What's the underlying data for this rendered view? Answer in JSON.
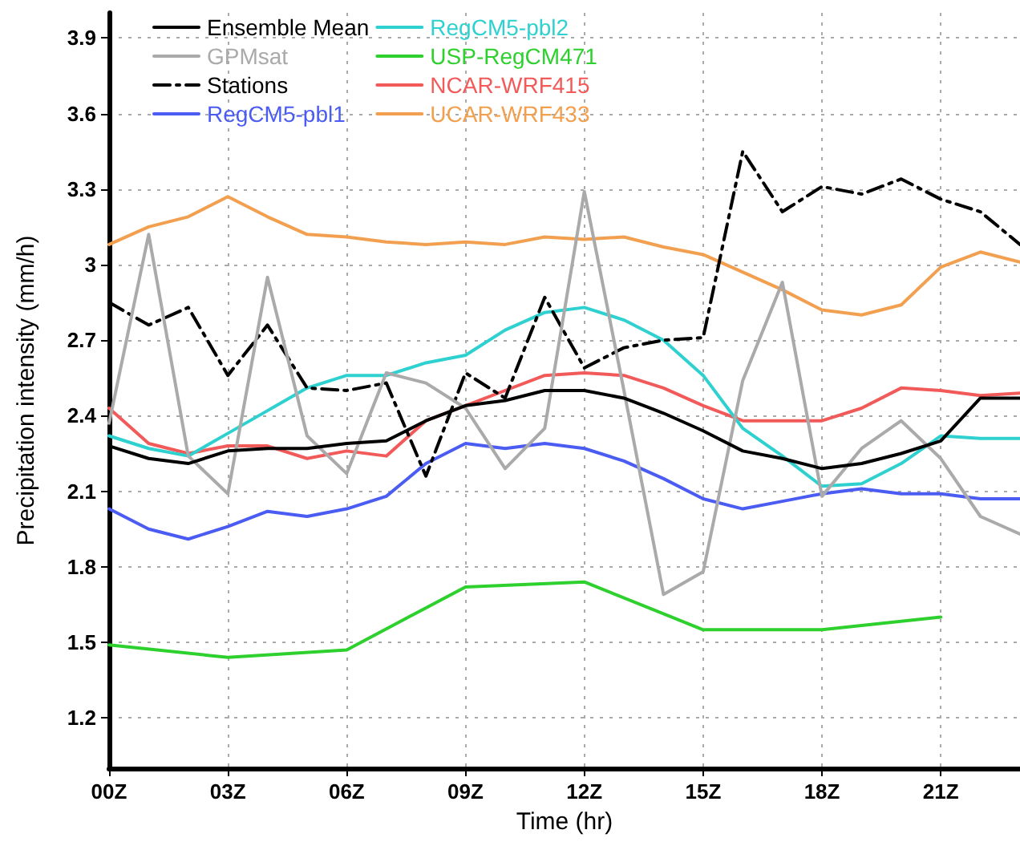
{
  "chart_data": {
    "type": "line",
    "xlabel": "Time (hr)",
    "ylabel": "Precipitation intensity (mm/h)",
    "x": [
      0,
      1,
      2,
      3,
      4,
      5,
      6,
      7,
      8,
      9,
      10,
      11,
      12,
      13,
      14,
      15,
      16,
      17,
      18,
      19,
      20,
      21,
      22,
      23
    ],
    "xlim": [
      0,
      23
    ],
    "ylim": [
      1.0,
      4.0
    ],
    "xticks": [
      {
        "value": 0,
        "label": "00Z"
      },
      {
        "value": 3,
        "label": "03Z"
      },
      {
        "value": 6,
        "label": "06Z"
      },
      {
        "value": 9,
        "label": "09Z"
      },
      {
        "value": 12,
        "label": "12Z"
      },
      {
        "value": 15,
        "label": "15Z"
      },
      {
        "value": 18,
        "label": "18Z"
      },
      {
        "value": 21,
        "label": "21Z"
      }
    ],
    "yticks": [
      1.2,
      1.5,
      1.8,
      2.1,
      2.4,
      2.7,
      3,
      3.3,
      3.6,
      3.9
    ],
    "grid": true,
    "legend": "top left",
    "marker": "none",
    "series": [
      {
        "name": "Ensemble Mean",
        "color": "#000000",
        "values": [
          2.28,
          2.23,
          2.21,
          2.26,
          2.27,
          2.27,
          2.29,
          2.3,
          2.38,
          2.44,
          2.46,
          2.5,
          2.5,
          2.47,
          2.41,
          2.34,
          2.26,
          2.23,
          2.19,
          2.21,
          2.25,
          2.3,
          2.47,
          2.47
        ]
      },
      {
        "name": "GPMsat",
        "color": "#aaaaaa",
        "values": [
          2.37,
          3.12,
          2.24,
          2.09,
          2.95,
          2.32,
          2.17,
          2.57,
          2.53,
          2.43,
          2.19,
          2.35,
          3.29,
          2.5,
          1.69,
          1.78,
          2.54,
          2.93,
          2.08,
          2.27,
          2.38,
          2.23,
          2.0,
          1.93
        ]
      },
      {
        "name": "Stations",
        "color": "#000000",
        "line_style": "dashdot",
        "values": [
          2.85,
          2.76,
          2.83,
          2.56,
          2.76,
          2.51,
          2.5,
          2.53,
          2.16,
          2.57,
          2.47,
          2.87,
          2.59,
          2.67,
          2.7,
          2.71,
          3.45,
          3.21,
          3.31,
          3.28,
          3.34,
          3.26,
          3.21,
          3.08
        ]
      },
      {
        "name": "RegCM5-pbl1",
        "color": "#4a5cf2",
        "values": [
          2.03,
          1.95,
          1.91,
          1.96,
          2.02,
          2.0,
          2.03,
          2.08,
          2.21,
          2.29,
          2.27,
          2.29,
          2.27,
          2.22,
          2.15,
          2.07,
          2.03,
          2.06,
          2.09,
          2.11,
          2.09,
          2.09,
          2.07,
          2.07
        ]
      },
      {
        "name": "RegCM5-pbl2",
        "color": "#2fd0d0",
        "values": [
          2.32,
          2.27,
          2.24,
          2.33,
          2.42,
          2.51,
          2.56,
          2.56,
          2.61,
          2.64,
          2.74,
          2.81,
          2.83,
          2.78,
          2.7,
          2.56,
          2.35,
          2.24,
          2.12,
          2.13,
          2.21,
          2.32,
          2.31,
          2.31
        ]
      },
      {
        "name": "USP-RegCM471",
        "color": "#2ed02e",
        "x": [
          0,
          3,
          6,
          9,
          12,
          15,
          18,
          21
        ],
        "values": [
          1.49,
          1.44,
          1.47,
          1.72,
          1.74,
          1.55,
          1.55,
          1.6
        ]
      },
      {
        "name": "NCAR-WRF415",
        "color": "#f25a5a",
        "values": [
          2.43,
          2.29,
          2.25,
          2.28,
          2.28,
          2.23,
          2.26,
          2.24,
          2.38,
          2.44,
          2.5,
          2.56,
          2.57,
          2.56,
          2.51,
          2.44,
          2.38,
          2.38,
          2.38,
          2.43,
          2.51,
          2.5,
          2.48,
          2.49
        ]
      },
      {
        "name": "UCAR-WRF433",
        "color": "#f2a050",
        "values": [
          3.08,
          3.15,
          3.19,
          3.27,
          3.19,
          3.12,
          3.11,
          3.09,
          3.08,
          3.09,
          3.08,
          3.11,
          3.1,
          3.11,
          3.07,
          3.04,
          2.97,
          2.9,
          2.82,
          2.8,
          2.84,
          2.99,
          3.05,
          3.01
        ]
      }
    ]
  }
}
